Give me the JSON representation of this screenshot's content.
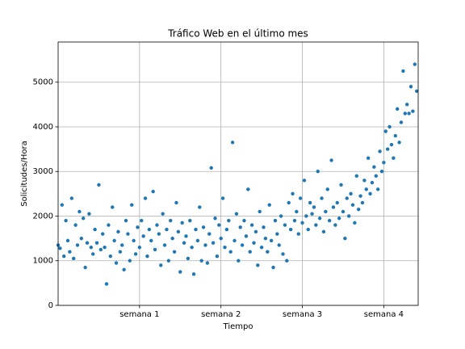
{
  "chart_data": {
    "type": "scatter",
    "title": "Tráfico Web en el último mes",
    "xlabel": "Tiempo",
    "ylabel": "Solicitudes/Hora",
    "color": "#1f77b4",
    "grid": true,
    "xlim": [
      0,
      743
    ],
    "ylim": [
      0,
      5900
    ],
    "xticks": [
      {
        "value": 168,
        "label": "semana 1"
      },
      {
        "value": 336,
        "label": "semana 2"
      },
      {
        "value": 504,
        "label": "semana 3"
      },
      {
        "value": 672,
        "label": "semana 4"
      }
    ],
    "yticks": [
      0,
      1000,
      2000,
      3000,
      4000,
      5000
    ],
    "x": [
      0,
      4,
      8,
      12,
      16,
      20,
      24,
      28,
      32,
      36,
      40,
      44,
      48,
      52,
      56,
      60,
      64,
      68,
      72,
      76,
      80,
      84,
      88,
      92,
      96,
      100,
      104,
      108,
      112,
      116,
      120,
      124,
      128,
      132,
      136,
      140,
      144,
      148,
      152,
      156,
      160,
      164,
      168,
      172,
      176,
      180,
      184,
      188,
      192,
      196,
      200,
      204,
      208,
      212,
      216,
      220,
      224,
      228,
      232,
      236,
      240,
      244,
      248,
      252,
      256,
      260,
      264,
      268,
      272,
      276,
      280,
      284,
      288,
      292,
      296,
      300,
      304,
      308,
      312,
      316,
      320,
      324,
      328,
      332,
      336,
      340,
      344,
      348,
      352,
      356,
      360,
      364,
      368,
      372,
      376,
      380,
      384,
      388,
      392,
      396,
      400,
      404,
      408,
      412,
      416,
      420,
      424,
      428,
      432,
      436,
      440,
      444,
      448,
      452,
      456,
      460,
      464,
      468,
      472,
      476,
      480,
      484,
      488,
      492,
      496,
      500,
      504,
      508,
      512,
      516,
      520,
      524,
      528,
      532,
      536,
      540,
      544,
      548,
      552,
      556,
      560,
      564,
      568,
      572,
      576,
      580,
      584,
      588,
      592,
      596,
      600,
      604,
      608,
      612,
      616,
      620,
      624,
      628,
      632,
      636,
      640,
      644,
      648,
      652,
      656,
      660,
      664,
      668,
      672,
      676,
      680,
      684,
      688,
      692,
      696,
      700,
      704,
      708,
      712,
      716,
      720,
      724,
      728,
      732,
      736,
      740
    ],
    "values": [
      1350,
      1280,
      2250,
      1100,
      1900,
      1450,
      1200,
      2400,
      1050,
      1800,
      1350,
      2100,
      1500,
      1950,
      850,
      1400,
      2050,
      1300,
      1150,
      1700,
      1400,
      2700,
      1250,
      1600,
      1300,
      480,
      1800,
      1100,
      2200,
      1450,
      950,
      1650,
      1200,
      1350,
      800,
      1900,
      1600,
      1000,
      2250,
      1450,
      1150,
      1750,
      1300,
      1900,
      1550,
      2400,
      1100,
      1700,
      1450,
      2550,
      1250,
      1800,
      1600,
      900,
      2050,
      1350,
      1700,
      1000,
      1900,
      1500,
      1200,
      2300,
      1650,
      750,
      1850,
      1400,
      1550,
      1050,
      1900,
      1300,
      700,
      1700,
      1450,
      2200,
      1000,
      1750,
      1350,
      950,
      1600,
      3080,
      1400,
      1950,
      1100,
      1800,
      1500,
      2400,
      1300,
      1700,
      1900,
      1200,
      3650,
      1450,
      2050,
      1000,
      1750,
      1350,
      1900,
      1550,
      2600,
      1200,
      1800,
      1400,
      1650,
      900,
      2100,
      1300,
      1750,
      1500,
      1200,
      2250,
      1450,
      850,
      1900,
      1600,
      1350,
      2000,
      1150,
      1800,
      1000,
      2300,
      1700,
      2500,
      1900,
      2100,
      1600,
      2400,
      1850,
      2800,
      2000,
      1700,
      2300,
      2050,
      2200,
      1800,
      3000,
      1950,
      2400,
      1650,
      2100,
      2600,
      1900,
      3250,
      2200,
      1800,
      2300,
      1950,
      2700,
      2100,
      1500,
      2400,
      2000,
      2500,
      2250,
      1850,
      2900,
      2150,
      2450,
      2300,
      2800,
      2600,
      3300,
      2500,
      2750,
      3100,
      2900,
      2600,
      3450,
      3000,
      3200,
      3900,
      3500,
      4000,
      3600,
      3300,
      3800,
      4400,
      3650,
      4100,
      5250,
      4300,
      4500,
      4300,
      4900,
      4350,
      5400,
      4800
    ]
  }
}
